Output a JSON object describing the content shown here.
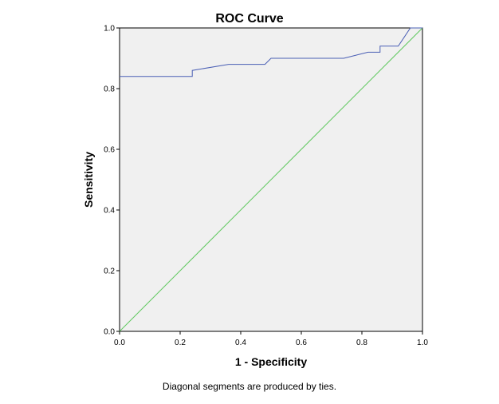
{
  "chart_data": {
    "type": "line",
    "title": "ROC Curve",
    "xlabel": "1 - Specificity",
    "ylabel": "Sensitivity",
    "xlim": [
      0.0,
      1.0
    ],
    "ylim": [
      0.0,
      1.0
    ],
    "x_ticks": [
      "0.0",
      "0.2",
      "0.4",
      "0.6",
      "0.8",
      "1.0"
    ],
    "y_ticks": [
      "0.0",
      "0.2",
      "0.4",
      "0.6",
      "0.8",
      "1.0"
    ],
    "grid": false,
    "plot_background": "#f0f0f0",
    "series": [
      {
        "color": "#4a5fb5",
        "x": [
          0.0,
          0.24,
          0.24,
          0.36,
          0.48,
          0.5,
          0.74,
          0.82,
          0.86,
          0.86,
          0.92,
          0.96,
          1.0
        ],
        "y": [
          0.84,
          0.84,
          0.86,
          0.88,
          0.88,
          0.9,
          0.9,
          0.92,
          0.92,
          0.94,
          0.94,
          1.0,
          1.0
        ]
      },
      {
        "color": "#5fc85f",
        "x": [
          0.0,
          1.0
        ],
        "y": [
          0.0,
          1.0
        ]
      }
    ]
  },
  "footnote": "Diagonal segments are produced by ties."
}
